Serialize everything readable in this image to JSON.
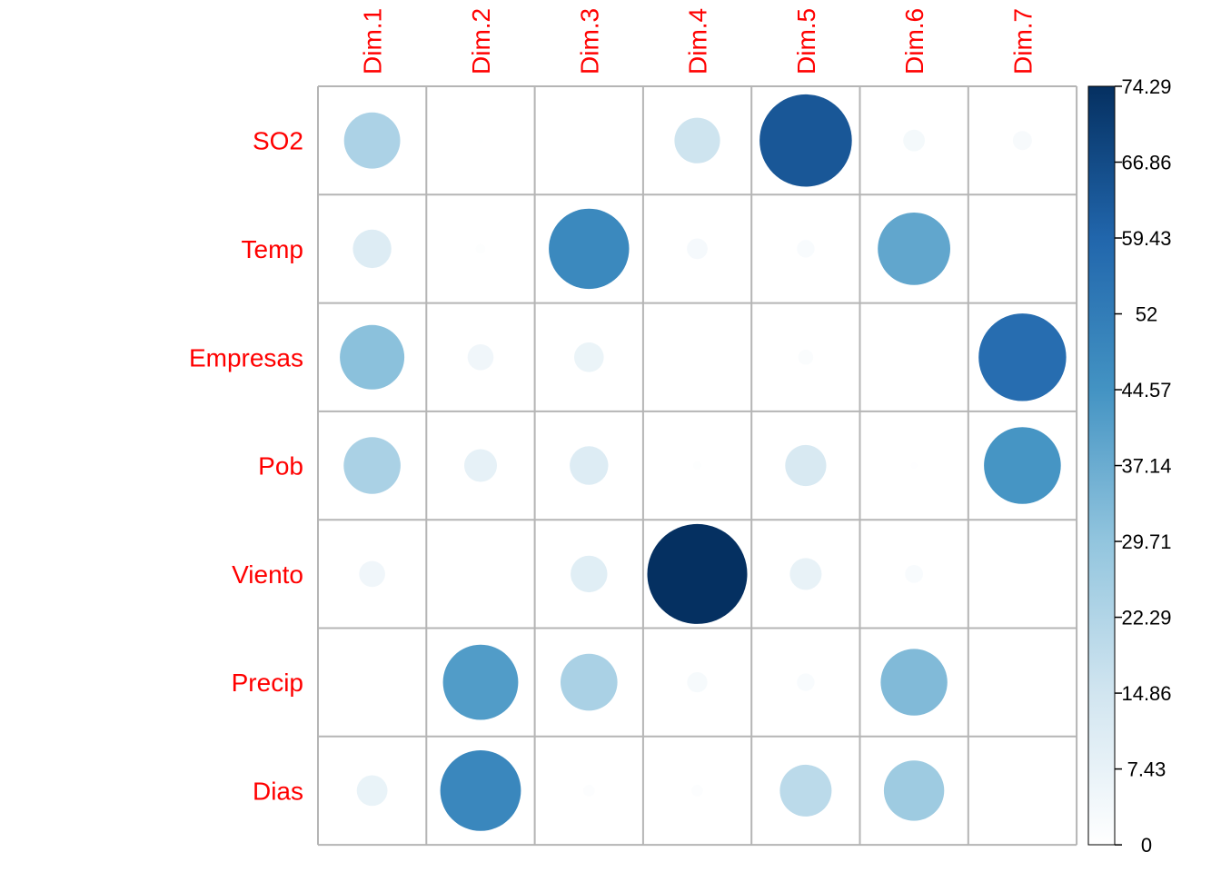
{
  "chart_data": {
    "type": "heatmap",
    "subtype": "corrplot-circle",
    "columns": [
      "Dim.1",
      "Dim.2",
      "Dim.3",
      "Dim.4",
      "Dim.5",
      "Dim.6",
      "Dim.7"
    ],
    "rows": [
      "SO2",
      "Temp",
      "Empresas",
      "Pob",
      "Viento",
      "Precip",
      "Dias"
    ],
    "values": [
      [
        23.5,
        0.2,
        0.0,
        15.5,
        63.5,
        3.5,
        2.7
      ],
      [
        11.0,
        0.7,
        48.0,
        3.2,
        2.3,
        39.0,
        0.0
      ],
      [
        31.0,
        5.0,
        6.5,
        0.0,
        1.7,
        0.0,
        57.0
      ],
      [
        24.0,
        8.0,
        11.0,
        0.5,
        12.5,
        0.3,
        44.0
      ],
      [
        5.0,
        0.0,
        10.0,
        74.29,
        7.5,
        2.4,
        0.0
      ],
      [
        0.0,
        42.0,
        24.0,
        3.0,
        2.3,
        33.0,
        0.0
      ],
      [
        7.0,
        48.5,
        1.0,
        1.0,
        20.0,
        27.0,
        0.0
      ]
    ],
    "scale": {
      "min": 0,
      "max": 74.29,
      "ticks": [
        "74.29",
        "66.86",
        "59.43",
        "52",
        "44.57",
        "37.14",
        "29.71",
        "22.29",
        "14.86",
        "7.43",
        "0"
      ]
    },
    "colors": {
      "low": "#ffffff",
      "mid1": "#d1e5f0",
      "mid2": "#92c5de",
      "mid3": "#4393c3",
      "mid4": "#2166ac",
      "high": "#053061",
      "label": "#ff0000",
      "grid": "#b5b5b5"
    }
  }
}
